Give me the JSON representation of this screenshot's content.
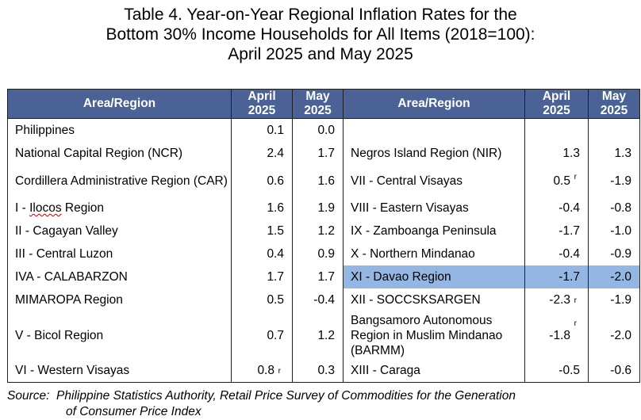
{
  "title": {
    "line1": "Table 4. Year-on-Year Regional Inflation Rates for the",
    "line2": "Bottom 30% Income Households for All Items (2018=100):",
    "line3": "April 2025 and May 2025"
  },
  "headers": {
    "area": "Area/Region",
    "april": [
      "April",
      "2025"
    ],
    "may": [
      "May",
      "2025"
    ]
  },
  "rows": [
    {
      "left": {
        "name": "Philippines",
        "april": "0.1",
        "may": "0.0"
      },
      "right": {
        "name": "",
        "april": "",
        "may": ""
      }
    },
    {
      "left": {
        "name": "National Capital Region (NCR)",
        "april": "2.4",
        "may": "1.7"
      },
      "right": {
        "name": "Negros Island Region (NIR)",
        "april": "1.3",
        "may": "1.3"
      }
    },
    {
      "left": {
        "name": "Cordillera Administrative Region (CAR)",
        "april": "0.6",
        "may": "1.6"
      },
      "right": {
        "name": "VII - Central Visayas",
        "april": "0.5",
        "april_flag": "r",
        "may": "-1.9"
      }
    },
    {
      "left": {
        "name": "I - Ilocos Region",
        "april": "1.6",
        "may": "1.9"
      },
      "right": {
        "name": "VIII - Eastern Visayas",
        "april": "-0.4",
        "may": "-0.8"
      }
    },
    {
      "left": {
        "name": "II - Cagayan Valley",
        "april": "1.5",
        "may": "1.2"
      },
      "right": {
        "name": "IX - Zamboanga Peninsula",
        "april": "-1.7",
        "may": "-1.0"
      }
    },
    {
      "left": {
        "name": "III - Central Luzon",
        "april": "0.4",
        "may": "0.9"
      },
      "right": {
        "name": "X - Northern Mindanao",
        "april": "-0.4",
        "may": "-0.9"
      }
    },
    {
      "left": {
        "name": "IVA - CALABARZON",
        "april": "1.7",
        "may": "1.7"
      },
      "right": {
        "name": "XI - Davao Region",
        "april": "-1.7",
        "may": "-2.0",
        "highlight": true
      }
    },
    {
      "left": {
        "name": "MIMAROPA Region",
        "april": "0.5",
        "may": "-0.4"
      },
      "right": {
        "name": "XII - SOCCSKSARGEN",
        "april": "-2.3",
        "april_flag": "r",
        "may": "-1.9"
      }
    },
    {
      "left": {
        "name": "V - Bicol Region",
        "april": "0.7",
        "may": "1.2"
      },
      "right": {
        "name": "Bangsamoro Autonomous Region in Muslim Mindanao (BARMM)",
        "april": "-1.8",
        "april_flag": "r",
        "may": "-2.0"
      }
    },
    {
      "left": {
        "name": "VI - Western Visayas",
        "april": "0.8",
        "april_flag": "r",
        "may": "0.3"
      },
      "right": {
        "name": "XIII - Caraga",
        "april": "-0.5",
        "may": "-0.6"
      }
    }
  ],
  "source": {
    "label": "Source:",
    "text_line1": "Philippine Statistics Authority, Retail Price Survey of Commodities for the Generation",
    "text_line2": "of Consumer Price Index"
  }
}
